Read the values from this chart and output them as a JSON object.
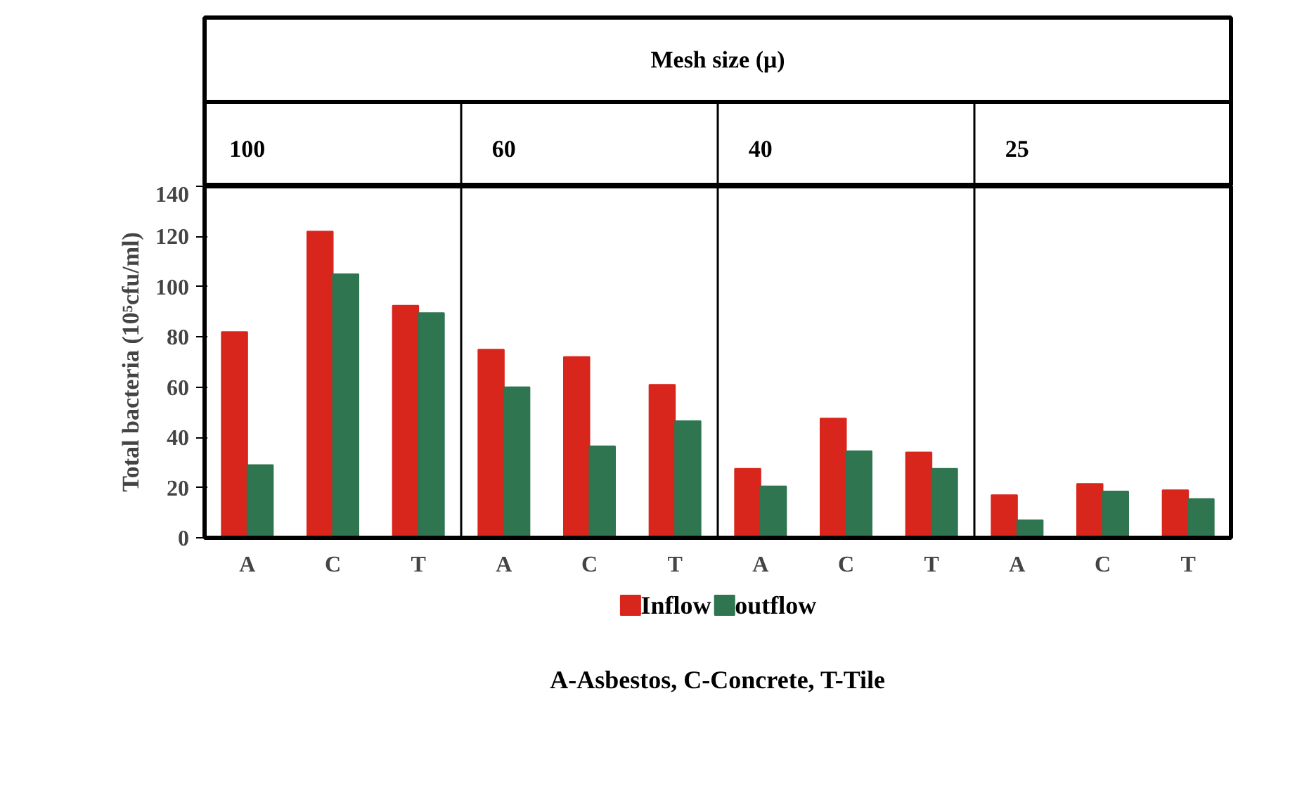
{
  "chart_data": {
    "type": "bar",
    "title": "Mesh size (μ)",
    "ylabel": "Total bacteria (10⁵cfu/ml)",
    "categories": [
      "A",
      "C",
      "T",
      "A",
      "C",
      "T",
      "A",
      "C",
      "T",
      "A",
      "C",
      "T"
    ],
    "series": [
      {
        "name": "Inflow",
        "color": "#d8261c",
        "values": [
          82,
          122,
          92.5,
          75,
          72,
          61,
          27.5,
          47.5,
          34,
          17,
          21.5,
          19
        ]
      },
      {
        "name": "outflow",
        "color": "#2e7550",
        "values": [
          29,
          105,
          89.5,
          60,
          36.5,
          46.5,
          20.5,
          34.5,
          27.5,
          7,
          18.5,
          15.5
        ]
      }
    ],
    "annotations": [
      "100",
      "60",
      "40",
      "25",
      "A-Asbestos, C-Concrete, T-Tile"
    ],
    "ylim": [
      0,
      140
    ],
    "yticks": [
      0,
      20,
      40,
      60,
      80,
      100,
      120,
      140
    ],
    "grid": false,
    "legend": "bottom"
  }
}
